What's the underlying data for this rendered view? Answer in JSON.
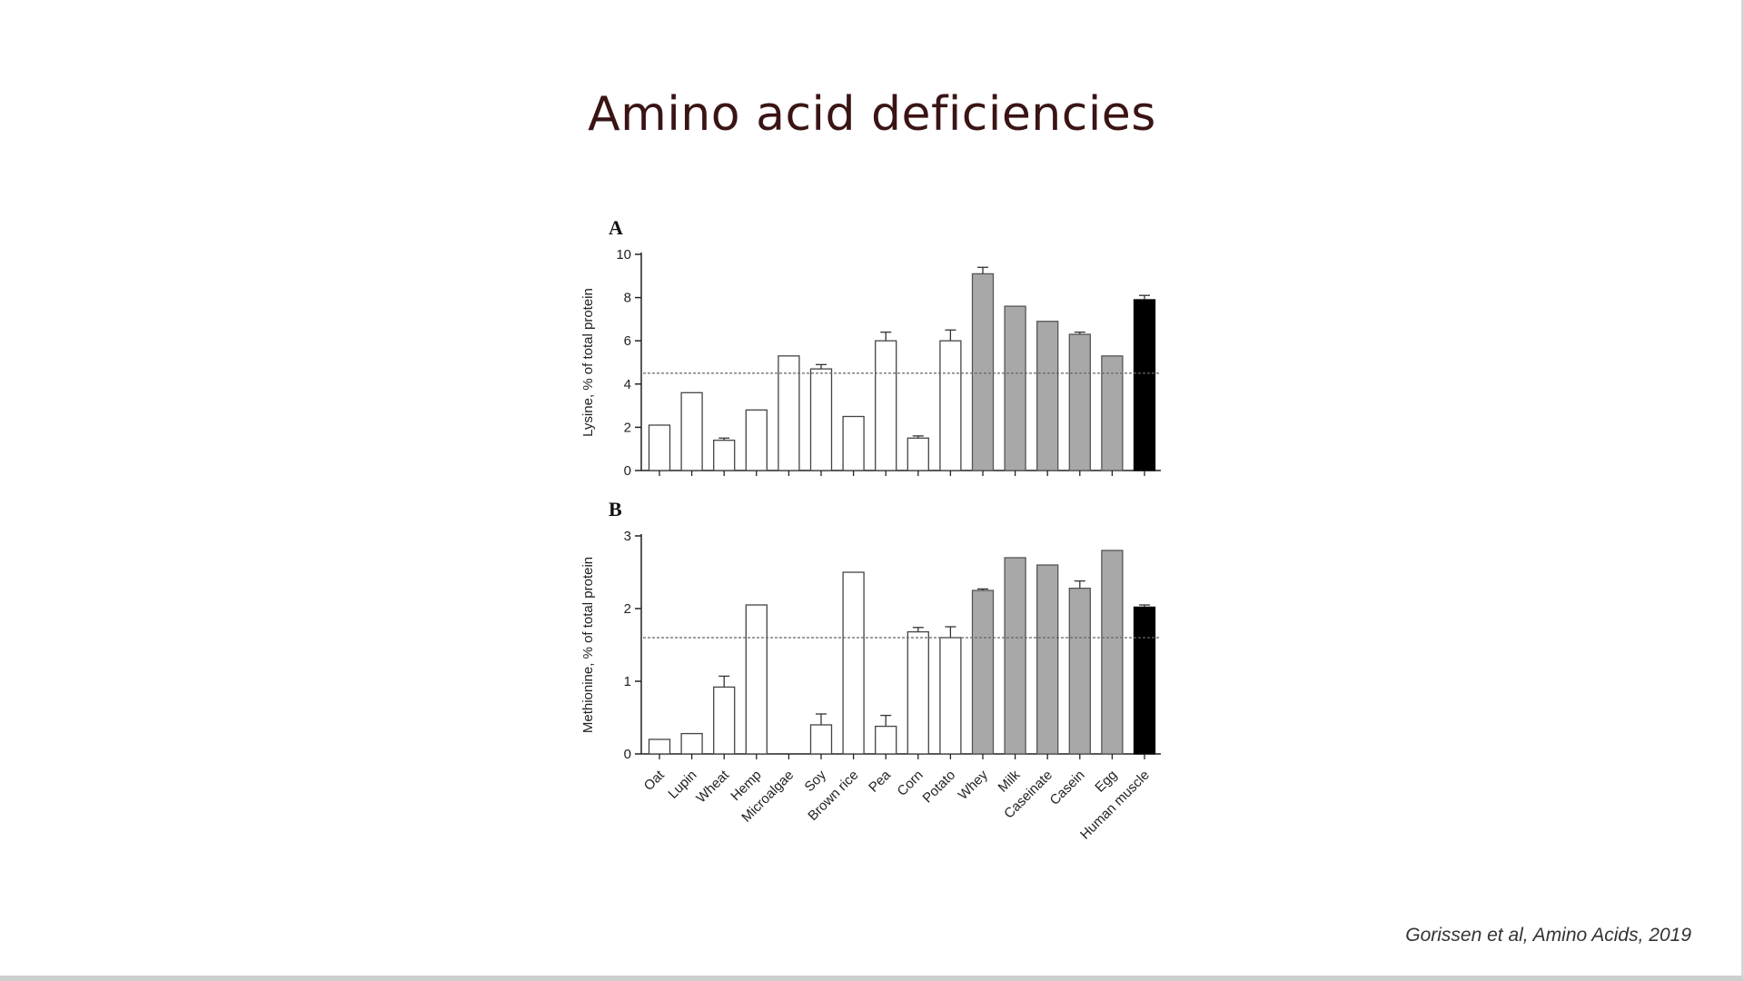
{
  "slide": {
    "title": "Amino acid deficiencies",
    "citation": "Gorissen et al, Amino Acids, 2019"
  },
  "colors": {
    "plant": "#ffffff",
    "animal": "#a8a8a8",
    "human": "#000000",
    "reference_line": "#666666"
  },
  "chart_data": [
    {
      "type": "bar",
      "panel_label": "A",
      "ylabel": "Lysine, % of total protein",
      "ylim": [
        0,
        10
      ],
      "yticks": [
        0,
        2,
        4,
        6,
        8,
        10
      ],
      "reference_value": 4.5,
      "categories": [
        "Oat",
        "Lupin",
        "Wheat",
        "Hemp",
        "Microalgae",
        "Soy",
        "Brown rice",
        "Pea",
        "Corn",
        "Potato",
        "Whey",
        "Milk",
        "Caseinate",
        "Casein",
        "Egg",
        "Human muscle"
      ],
      "groups": [
        "plant",
        "plant",
        "plant",
        "plant",
        "plant",
        "plant",
        "plant",
        "plant",
        "plant",
        "plant",
        "animal",
        "animal",
        "animal",
        "animal",
        "animal",
        "human"
      ],
      "values": [
        2.1,
        3.6,
        1.4,
        2.8,
        5.3,
        4.7,
        2.5,
        6.0,
        1.5,
        6.0,
        9.1,
        7.6,
        6.9,
        6.3,
        5.3,
        7.9
      ],
      "errors": [
        0,
        0,
        0.1,
        0,
        0,
        0.2,
        0,
        0.4,
        0.1,
        0.5,
        0.3,
        0,
        0,
        0.1,
        0,
        0.2
      ],
      "grid": false,
      "legend": "none"
    },
    {
      "type": "bar",
      "panel_label": "B",
      "ylabel": "Methionine, % of total protein",
      "ylim": [
        0,
        3
      ],
      "yticks": [
        0,
        1,
        2,
        3
      ],
      "reference_value": 1.6,
      "categories": [
        "Oat",
        "Lupin",
        "Wheat",
        "Hemp",
        "Microalgae",
        "Soy",
        "Brown rice",
        "Pea",
        "Corn",
        "Potato",
        "Whey",
        "Milk",
        "Caseinate",
        "Casein",
        "Egg",
        "Human muscle"
      ],
      "groups": [
        "plant",
        "plant",
        "plant",
        "plant",
        "plant",
        "plant",
        "plant",
        "plant",
        "plant",
        "plant",
        "animal",
        "animal",
        "animal",
        "animal",
        "animal",
        "human"
      ],
      "values": [
        0.2,
        0.28,
        0.92,
        2.05,
        0,
        0.4,
        2.5,
        0.38,
        1.68,
        1.6,
        2.25,
        2.7,
        2.6,
        2.28,
        2.8,
        2.02
      ],
      "errors": [
        0,
        0,
        0.15,
        0,
        0,
        0.15,
        0,
        0.15,
        0.06,
        0.15,
        0.02,
        0,
        0,
        0.1,
        0,
        0.03
      ],
      "grid": false,
      "legend": "none"
    }
  ]
}
